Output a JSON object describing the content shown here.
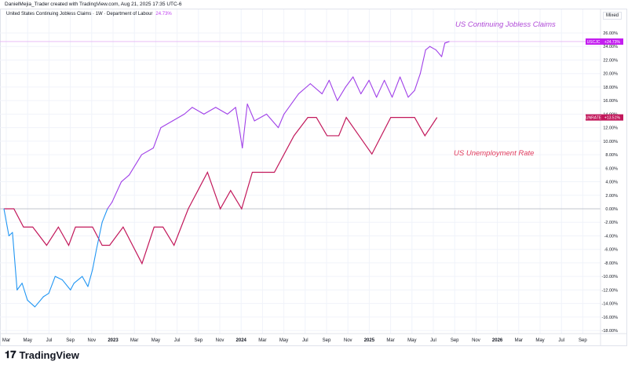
{
  "header": {
    "credit": "DanielMejia_Trader created with TradingView.com, Aug 21, 2025 17:35 UTC-6",
    "legend_title": "United States Continuing Jobless Claims · 1W · Department of Labour",
    "legend_value": "24.73%",
    "scale_mode": "Mixed"
  },
  "footer": {
    "brand": "TradingView"
  },
  "chart_data": {
    "type": "line",
    "ylim": [
      -18,
      26
    ],
    "yticks": [
      "26.00%",
      "24.00%",
      "22.00%",
      "20.00%",
      "18.00%",
      "16.00%",
      "14.00%",
      "12.00%",
      "10.00%",
      "8.00%",
      "6.00%",
      "4.00%",
      "2.00%",
      "0.00%",
      "-2.00%",
      "-4.00%",
      "-6.00%",
      "-8.00%",
      "-10.00%",
      "-12.00%",
      "-14.00%",
      "-16.00%",
      "-18.00%"
    ],
    "xticks": [
      "Mar",
      "May",
      "Jul",
      "Sep",
      "Nov",
      "2023",
      "Mar",
      "May",
      "Jul",
      "Sep",
      "Nov",
      "2024",
      "Mar",
      "May",
      "Jul",
      "Sep",
      "Nov",
      "2025",
      "Mar",
      "May",
      "Jul",
      "Sep",
      "Nov",
      "2026",
      "Mar",
      "May",
      "Jul",
      "Sep"
    ],
    "grid": true,
    "annotations": [
      {
        "text": "US Continuing Jobless Claims",
        "color": "#b04ad8"
      },
      {
        "text": "US Unemployment Rate",
        "color": "#e03a5c"
      }
    ],
    "series": [
      {
        "name": "USCJC",
        "label_value": "+24.73%",
        "color_above": "#a040e8",
        "color_below": "#2196f3",
        "label_color": "#c41ef0",
        "x": [
          "2022-03-01",
          "2022-03-15",
          "2022-03-25",
          "2022-04-08",
          "2022-04-22",
          "2022-05-07",
          "2022-05-28",
          "2022-06-22",
          "2022-07-07",
          "2022-07-25",
          "2022-08-15",
          "2022-09-08",
          "2022-09-18",
          "2022-10-11",
          "2022-10-27",
          "2022-11-10",
          "2022-11-21",
          "2022-12-07",
          "2022-12-22",
          "2023-01-05",
          "2023-02-01",
          "2023-02-23",
          "2023-03-28",
          "2023-05-01",
          "2023-05-22",
          "2023-06-25",
          "2023-07-28",
          "2023-08-20",
          "2023-09-23",
          "2023-10-26",
          "2023-11-29",
          "2023-12-22",
          "2024-01-02",
          "2024-01-11",
          "2024-01-25",
          "2024-02-15",
          "2024-03-19",
          "2024-04-22",
          "2024-05-08",
          "2024-06-19",
          "2024-07-22",
          "2024-08-25",
          "2024-09-15",
          "2024-10-08",
          "2024-11-01",
          "2024-11-22",
          "2024-12-14",
          "2025-01-07",
          "2025-01-28",
          "2025-02-20",
          "2025-03-12",
          "2025-04-04",
          "2025-04-27",
          "2025-05-15",
          "2025-06-01",
          "2025-06-16",
          "2025-06-28",
          "2025-07-15",
          "2025-08-01",
          "2025-08-10",
          "2025-08-22"
        ],
        "y": [
          0,
          -4,
          -3.5,
          -12,
          -11,
          -13.5,
          -14.5,
          -13,
          -12.5,
          -10,
          -10.5,
          -12,
          -11,
          -10,
          -11.5,
          -9,
          -6,
          -2,
          0,
          1,
          4,
          5,
          8,
          9,
          12,
          13,
          14,
          15,
          14,
          15,
          14,
          15,
          12,
          9,
          15.5,
          13,
          14,
          12,
          14,
          17,
          18.5,
          17,
          19,
          16,
          18,
          19.5,
          17,
          19,
          16.5,
          19,
          16.5,
          19.5,
          16.5,
          17.5,
          20,
          23.5,
          24,
          23.5,
          22.5,
          24.5,
          24.73
        ]
      },
      {
        "name": "UNRATE",
        "label_value": "+13.51%",
        "color": "#c2185b",
        "label_color": "#c2185b",
        "x": [
          "2022-03-01",
          "2022-03-29",
          "2022-04-26",
          "2022-05-22",
          "2022-07-01",
          "2022-08-04",
          "2022-09-03",
          "2022-09-22",
          "2022-11-10",
          "2022-12-07",
          "2022-12-28",
          "2023-02-06",
          "2023-03-29",
          "2023-05-03",
          "2023-05-28",
          "2023-06-29",
          "2023-08-09",
          "2023-10-03",
          "2023-11-09",
          "2023-12-08",
          "2024-01-09",
          "2024-02-09",
          "2024-04-11",
          "2024-06-06",
          "2024-07-15",
          "2024-08-09",
          "2024-09-09",
          "2024-10-12",
          "2024-11-03",
          "2024-12-09",
          "2025-01-15",
          "2025-03-08",
          "2025-05-15",
          "2025-06-14",
          "2025-07-18"
        ],
        "y": [
          0,
          0,
          -2.7,
          -2.7,
          -5.4,
          -2.7,
          -5.4,
          -2.7,
          -2.7,
          -5.4,
          -5.4,
          -2.7,
          -8.1,
          -2.7,
          -2.7,
          -5.4,
          0,
          5.4,
          0,
          2.7,
          0,
          5.4,
          5.4,
          10.8,
          13.51,
          13.51,
          10.8,
          10.8,
          13.51,
          10.8,
          8.1,
          13.51,
          13.51,
          10.8,
          13.51
        ]
      }
    ]
  }
}
